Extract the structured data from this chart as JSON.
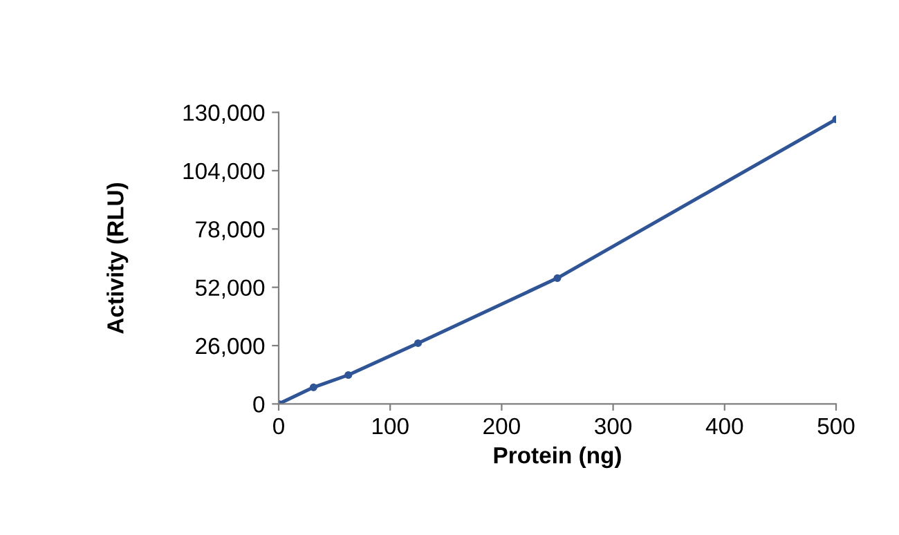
{
  "chart_data": {
    "type": "line",
    "xlabel": "Protein (ng)",
    "ylabel": "Activity (RLU)",
    "x": [
      0,
      31.25,
      62.5,
      125,
      250,
      500
    ],
    "series": [
      {
        "color": "#2f5597",
        "values": [
          0,
          7400,
          12900,
          27100,
          56100,
          126900
        ]
      }
    ],
    "xlim": [
      0,
      500
    ],
    "xticks": [
      0,
      100,
      200,
      300,
      400,
      500
    ],
    "ylim": [
      0,
      130000
    ],
    "yticks": [
      {
        "value": 0,
        "label": "0"
      },
      {
        "value": 26000,
        "label": "26,000"
      },
      {
        "value": 52000,
        "label": "52,000"
      },
      {
        "value": 78000,
        "label": "78,000"
      },
      {
        "value": 104000,
        "label": "104,000"
      },
      {
        "value": 130000,
        "label": "130,000"
      }
    ],
    "marker": "circle",
    "line_style": "solid",
    "grid": false,
    "legend": false
  }
}
